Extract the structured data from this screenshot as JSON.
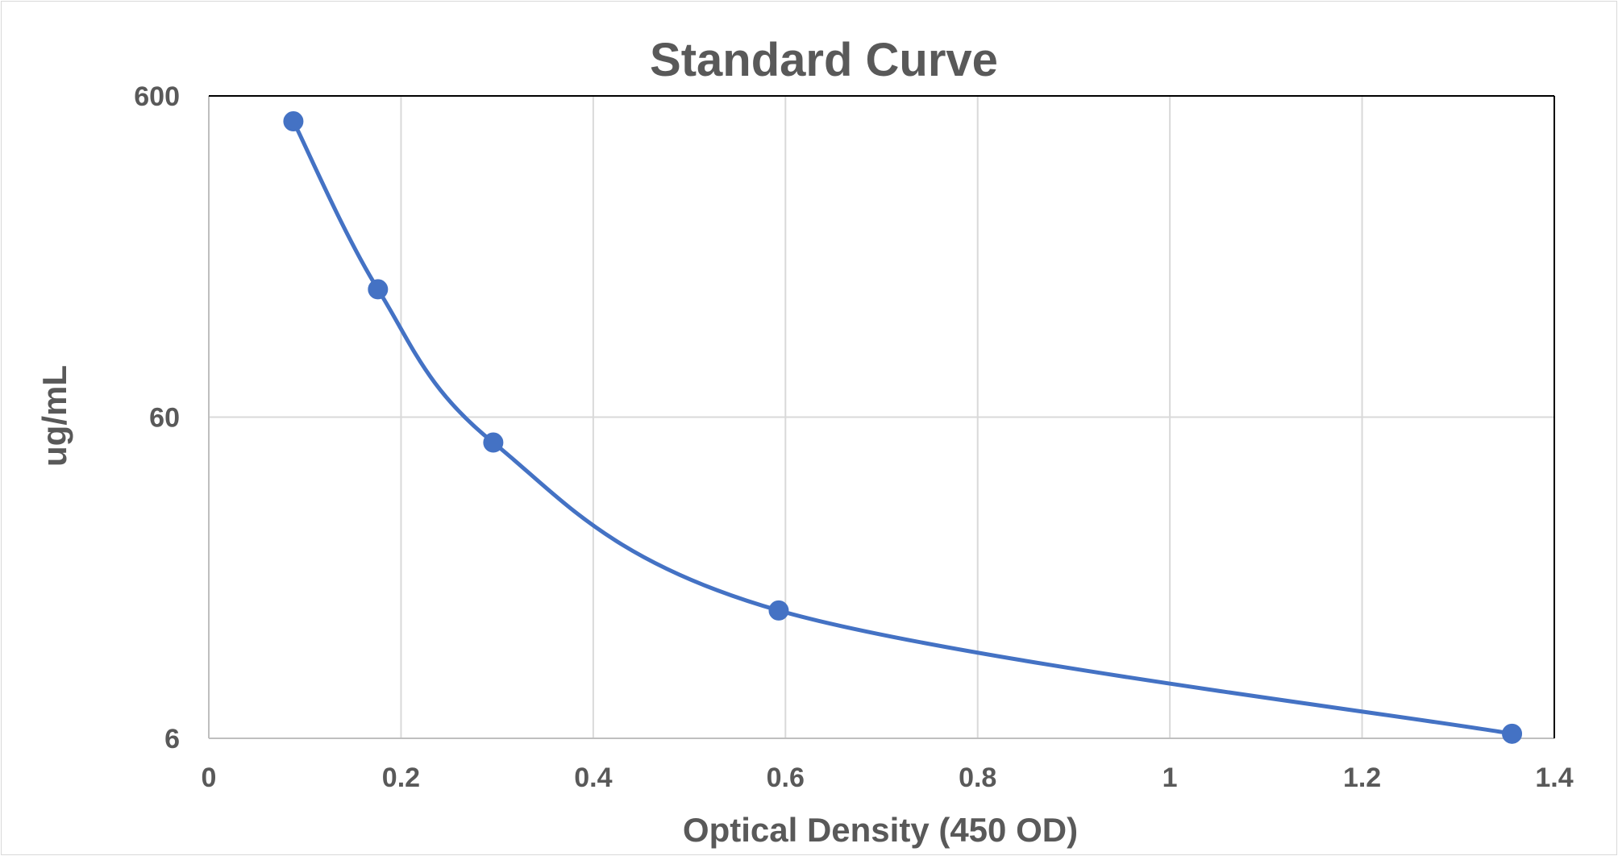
{
  "chart_data": {
    "type": "scatter",
    "title": "Standard Curve",
    "xlabel": "Optical Density (450 OD)",
    "ylabel": "ug/mL",
    "xlim": [
      0,
      1.4
    ],
    "ylim": [
      6,
      600
    ],
    "y_scale": "log",
    "grid": true,
    "legend": "none",
    "x_ticks": [
      "0",
      "0.2",
      "0.4",
      "0.6",
      "0.8",
      "1",
      "1.2",
      "1.4"
    ],
    "y_ticks": [
      "6",
      "60",
      "600"
    ],
    "series": [
      {
        "x": [
          0.088,
          0.176,
          0.296,
          0.593,
          1.356
        ],
        "y": [
          500,
          150,
          50,
          15,
          6.2
        ],
        "color": "#4472c4",
        "line": "smooth",
        "markers": true
      }
    ]
  }
}
